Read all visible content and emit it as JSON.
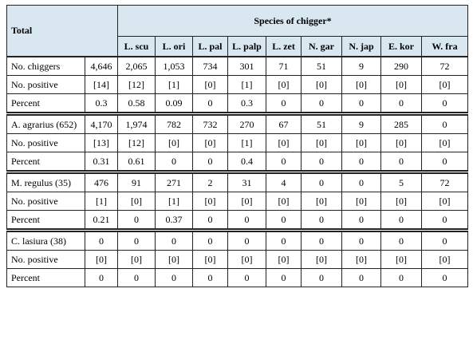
{
  "table": {
    "total_label": "Total",
    "species_header": "Species of chigger*",
    "columns": [
      "L. scu",
      "L. ori",
      "L. pal",
      "L. palp",
      "L. zet",
      "N. gar",
      "N. jap",
      "E. kor",
      "W. fra"
    ],
    "sections": [
      {
        "rows": [
          {
            "label": "No. chiggers",
            "total": "4,646",
            "values": [
              "2,065",
              "1,053",
              "734",
              "301",
              "71",
              "51",
              "9",
              "290",
              "72"
            ]
          },
          {
            "label": "No. positive",
            "total": "[14]",
            "values": [
              "[12]",
              "[1]",
              "[0]",
              "[1]",
              "[0]",
              "[0]",
              "[0]",
              "[0]",
              "[0]"
            ]
          },
          {
            "label": "Percent",
            "total": "0.3",
            "values": [
              "0.58",
              "0.09",
              "0",
              "0.3",
              "0",
              "0",
              "0",
              "0",
              "0"
            ]
          }
        ]
      },
      {
        "rows": [
          {
            "label": "A. agrarius (652)",
            "total": "4,170",
            "values": [
              "1,974",
              "782",
              "732",
              "270",
              "67",
              "51",
              "9",
              "285",
              "0"
            ]
          },
          {
            "label": "No. positive",
            "total": "[13]",
            "values": [
              "[12]",
              "[0]",
              "[0]",
              "[1]",
              "[0]",
              "[0]",
              "[0]",
              "[0]",
              "[0]"
            ]
          },
          {
            "label": "Percent",
            "total": "0.31",
            "values": [
              "0.61",
              "0",
              "0",
              "0.4",
              "0",
              "0",
              "0",
              "0",
              "0"
            ]
          }
        ]
      },
      {
        "rows": [
          {
            "label": "M. regulus (35)",
            "total": "476",
            "values": [
              "91",
              "271",
              "2",
              "31",
              "4",
              "0",
              "0",
              "5",
              "72"
            ]
          },
          {
            "label": "No. positive",
            "total": "[1]",
            "values": [
              "[0]",
              "[1]",
              "[0]",
              "[0]",
              "[0]",
              "[0]",
              "[0]",
              "[0]",
              "[0]"
            ]
          },
          {
            "label": "Percent",
            "total": "0.21",
            "values": [
              "0",
              "0.37",
              "0",
              "0",
              "0",
              "0",
              "0",
              "0",
              "0"
            ]
          }
        ]
      },
      {
        "rows": [
          {
            "label": "C. lasiura (38)",
            "total": "0",
            "values": [
              "0",
              "0",
              "0",
              "0",
              "0",
              "0",
              "0",
              "0",
              "0"
            ]
          },
          {
            "label": "No. positive",
            "total": "[0]",
            "values": [
              "[0]",
              "[0]",
              "[0]",
              "[0]",
              "[0]",
              "[0]",
              "[0]",
              "[0]",
              "[0]"
            ]
          },
          {
            "label": "Percent",
            "total": "0",
            "values": [
              "0",
              "0",
              "0",
              "0",
              "0",
              "0",
              "0",
              "0",
              "0"
            ]
          }
        ]
      }
    ]
  }
}
